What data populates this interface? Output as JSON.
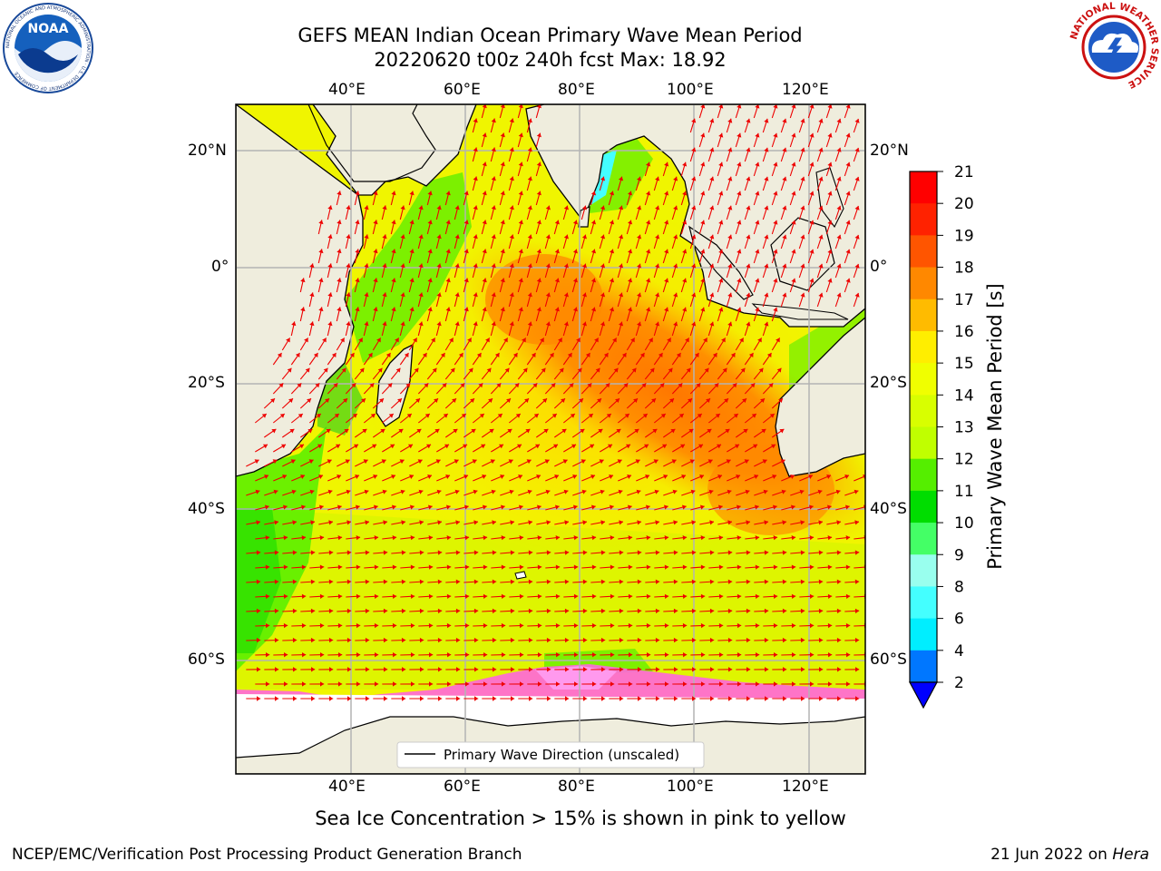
{
  "header": {
    "title_line1": "GEFS MEAN Indian Ocean Primary Wave Mean Period",
    "title_line2": "20220620 t00z 240h fcst   Max: 18.92"
  },
  "logos": {
    "left_text": "NOAA",
    "left_ring_text": "NATIONAL OCEANIC AND ATMOSPHERIC ADMINISTRATION · U.S. DEPARTMENT OF COMMERCE",
    "right_ring_text": "NATIONAL WEATHER SERVICE"
  },
  "map": {
    "lon_ticks": [
      "40°E",
      "60°E",
      "80°E",
      "100°E",
      "120°E"
    ],
    "lat_ticks": [
      "20°N",
      "0°",
      "20°S",
      "40°S",
      "60°S"
    ],
    "legend_label": "Primary Wave Direction (unscaled)",
    "colors": {
      "land": "#efeddd",
      "ice_pink": "#ff66dd",
      "arrow": "#ee0000",
      "grid": "#b3b3b3"
    }
  },
  "colorbar": {
    "label": "Primary Wave Mean Period [s]",
    "ticks": [
      "21",
      "20",
      "19",
      "18",
      "17",
      "16",
      "15",
      "14",
      "13",
      "12",
      "11",
      "10",
      "9",
      "8",
      "6",
      "4",
      "2"
    ],
    "levels": [
      {
        "value": "20-21",
        "color": "#ff0000"
      },
      {
        "value": "19-20",
        "color": "#ff2200"
      },
      {
        "value": "18-19",
        "color": "#ff5500"
      },
      {
        "value": "17-18",
        "color": "#ff8800"
      },
      {
        "value": "16-17",
        "color": "#ffbb00"
      },
      {
        "value": "15-16",
        "color": "#ffee00"
      },
      {
        "value": "14-15",
        "color": "#f0ff00"
      },
      {
        "value": "13-14",
        "color": "#d8ff00"
      },
      {
        "value": "12-13",
        "color": "#c0ff00"
      },
      {
        "value": "11-12",
        "color": "#55ee00"
      },
      {
        "value": "10-11",
        "color": "#00dd00"
      },
      {
        "value": "9-10",
        "color": "#44ff66"
      },
      {
        "value": "8-9",
        "color": "#99ffee"
      },
      {
        "value": "6-8",
        "color": "#44ffff"
      },
      {
        "value": "4-6",
        "color": "#00eeff"
      },
      {
        "value": "2-4",
        "color": "#0077ff"
      },
      {
        "value": "<2",
        "color": "#0000ff"
      }
    ]
  },
  "caption": "Sea Ice Concentration > 15% is shown in pink to yellow",
  "footer": {
    "left": "NCEP/EMC/Verification Post Processing Product Generation Branch",
    "right_date": "21 Jun 2022 on",
    "right_host": "Hera"
  }
}
